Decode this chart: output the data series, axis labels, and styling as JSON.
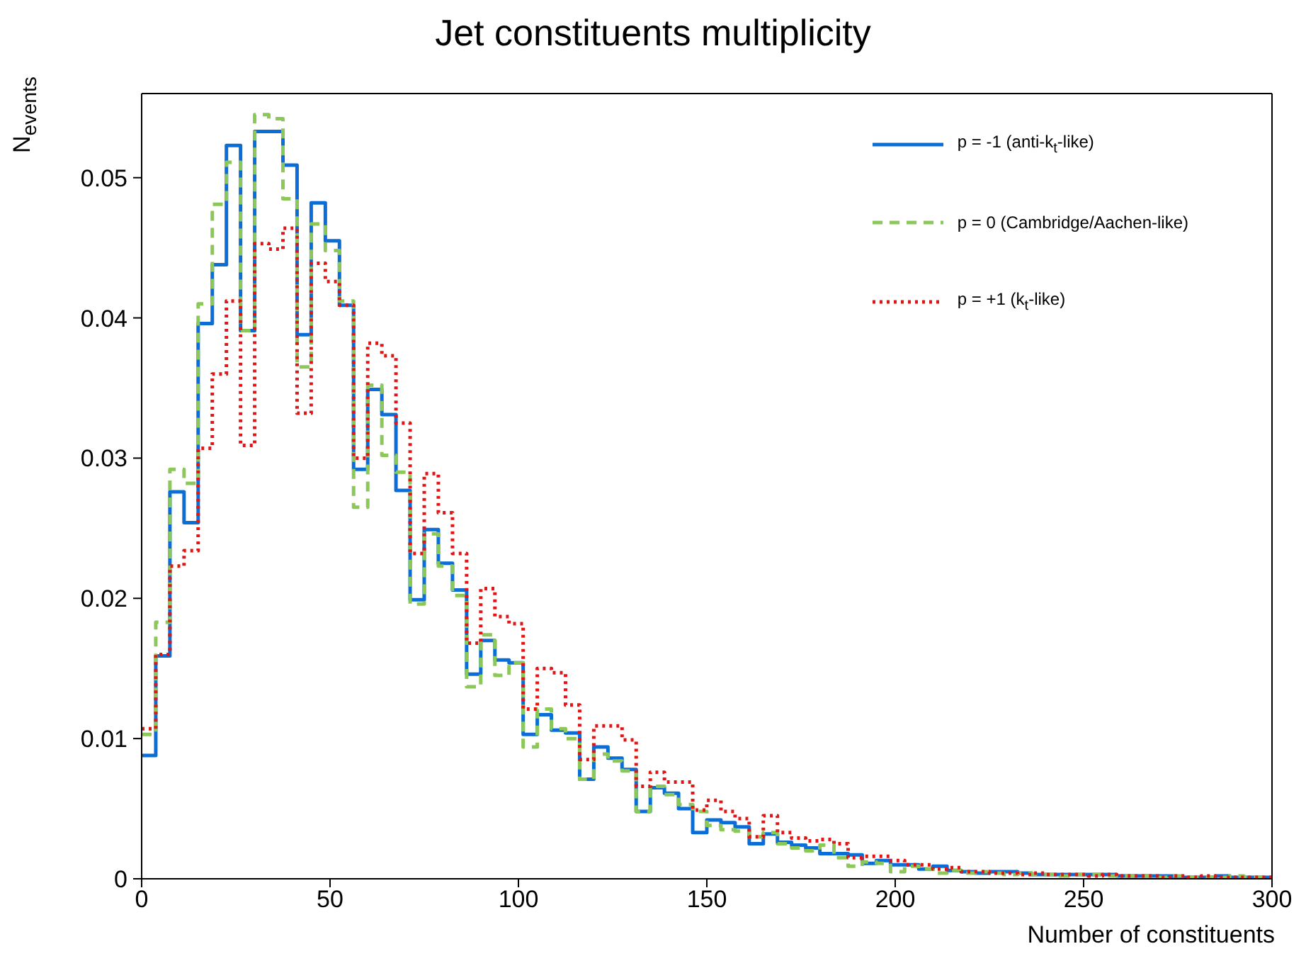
{
  "chart_data": {
    "type": "histogram",
    "title": "Jet constituents multiplicity",
    "xlabel": "Number of constituents",
    "ylabel": "N$_{events}$",
    "legend": "top right",
    "bins": [
      0,
      3.75,
      7.5,
      11.25,
      15,
      18.75,
      22.5,
      26.25,
      30,
      33.75,
      37.5,
      41.25,
      45,
      48.75,
      52.5,
      56.25,
      60,
      63.75,
      67.5,
      71.25,
      75,
      78.75,
      82.5,
      86.25,
      90,
      93.75,
      97.5,
      101.25,
      105,
      108.75,
      112.5,
      116.25,
      120,
      123.75,
      127.5,
      131.25,
      135,
      138.75,
      142.5,
      146.25,
      150,
      153.75,
      157.5,
      161.25,
      165,
      168.75,
      172.5,
      176.25,
      180,
      183.75,
      187.5,
      191.25,
      195,
      198.75,
      202.5,
      206.25,
      210,
      213.75,
      217.5,
      221.25,
      225,
      228.75,
      232.5,
      236.25,
      240,
      243.75,
      247.5,
      251.25,
      255,
      258.75,
      262.5,
      266.25,
      270,
      273.75,
      277.5,
      281.25,
      285,
      288.75,
      292.5,
      296.25,
      300
    ],
    "xlim": [
      0,
      300
    ],
    "xticks": [
      0,
      50,
      100,
      150,
      200,
      250,
      300
    ],
    "ylim": [
      0,
      0.056
    ],
    "yticks": [
      0,
      0.01,
      0.02,
      0.03,
      0.04,
      0.05
    ],
    "series": [
      {
        "name": "p = -1  (anti-k$_{t}$-like)",
        "color": "#0a6ed6",
        "line_style": "solid",
        "values": [
          0.0088,
          0.0159,
          0.0276,
          0.0254,
          0.0396,
          0.0438,
          0.0523,
          0.0391,
          0.0533,
          0.0533,
          0.0509,
          0.0388,
          0.0482,
          0.0455,
          0.0409,
          0.0292,
          0.0349,
          0.0331,
          0.0277,
          0.0199,
          0.0249,
          0.0225,
          0.0206,
          0.0146,
          0.017,
          0.0156,
          0.0154,
          0.0103,
          0.0117,
          0.0106,
          0.0104,
          0.0071,
          0.0094,
          0.0086,
          0.0078,
          0.0048,
          0.0065,
          0.0061,
          0.005,
          0.0033,
          0.0042,
          0.004,
          0.0037,
          0.0025,
          0.0032,
          0.0026,
          0.0024,
          0.0022,
          0.0018,
          0.0018,
          0.0017,
          0.0011,
          0.0013,
          0.001,
          0.001,
          0.0007,
          0.0009,
          0.0006,
          0.0005,
          0.0004,
          0.0005,
          0.0005,
          0.0004,
          0.0003,
          0.0003,
          0.0003,
          0.0003,
          0.0003,
          0.0003,
          0.0002,
          0.0002,
          0.0002,
          0.0002,
          0.0001,
          0.0001,
          0.0001,
          0.0002,
          0.0001,
          0.0001,
          0.0001
        ]
      },
      {
        "name": "p =  0  (Cambridge/Aachen-like)",
        "color": "#8cc75a",
        "line_style": "dashed",
        "values": [
          0.0103,
          0.0183,
          0.0292,
          0.0282,
          0.041,
          0.0481,
          0.0511,
          0.0391,
          0.0545,
          0.0542,
          0.0485,
          0.0365,
          0.0467,
          0.0448,
          0.0412,
          0.0265,
          0.0352,
          0.0302,
          0.029,
          0.0196,
          0.0246,
          0.0223,
          0.0202,
          0.0137,
          0.0174,
          0.0145,
          0.0154,
          0.0094,
          0.0121,
          0.0107,
          0.01,
          0.0071,
          0.0089,
          0.0084,
          0.0077,
          0.0048,
          0.0066,
          0.006,
          0.0053,
          0.0048,
          0.0038,
          0.0035,
          0.0034,
          0.003,
          0.0033,
          0.0025,
          0.0022,
          0.002,
          0.0024,
          0.0015,
          0.0009,
          0.0012,
          0.0011,
          0.0005,
          0.0009,
          0.0007,
          0.0004,
          0.0006,
          0.0004,
          0.0005,
          0.0004,
          0.0003,
          0.0004,
          0.0003,
          0.0003,
          0.0002,
          0.0003,
          0.0003,
          0.0002,
          0.0002,
          0.0002,
          0.0002,
          0.0001,
          0.0002,
          0.0001,
          0.0001,
          0.0001,
          0.0002,
          0.0001,
          0.0001
        ]
      },
      {
        "name": "p = +1  (k$_{t}$-like)",
        "color": "#e01515",
        "line_style": "dotted",
        "values": [
          0.0107,
          0.016,
          0.0223,
          0.0234,
          0.0307,
          0.036,
          0.0412,
          0.0309,
          0.0453,
          0.0449,
          0.0464,
          0.0332,
          0.0439,
          0.0426,
          0.0409,
          0.03,
          0.0382,
          0.0373,
          0.0325,
          0.0232,
          0.0289,
          0.0261,
          0.0232,
          0.0168,
          0.0207,
          0.0187,
          0.0182,
          0.0121,
          0.015,
          0.0147,
          0.0124,
          0.0085,
          0.0109,
          0.0109,
          0.0099,
          0.0066,
          0.0076,
          0.0069,
          0.0069,
          0.0049,
          0.0056,
          0.0048,
          0.0043,
          0.003,
          0.0045,
          0.0033,
          0.0029,
          0.0027,
          0.0028,
          0.0025,
          0.0015,
          0.0016,
          0.0016,
          0.0013,
          0.001,
          0.001,
          0.0007,
          0.0008,
          0.0005,
          0.0005,
          0.0004,
          0.0004,
          0.0003,
          0.0004,
          0.0003,
          0.0003,
          0.0003,
          0.0002,
          0.0003,
          0.0002,
          0.0002,
          0.0002,
          0.0001,
          0.0002,
          0.0001,
          0.0002,
          0.0001,
          0.0001,
          0.0001,
          0.0001
        ]
      }
    ]
  }
}
